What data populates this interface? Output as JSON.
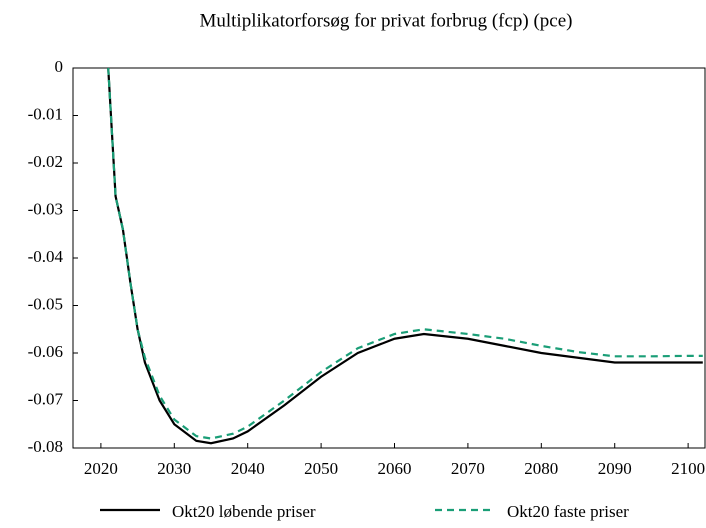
{
  "chart_data": {
    "type": "line",
    "title": "Multiplikatorforsøg for privat forbrug (fcp) (pce)",
    "x": [
      2021,
      2022,
      2023,
      2024,
      2025,
      2026,
      2028,
      2030,
      2033,
      2035,
      2038,
      2040,
      2045,
      2050,
      2055,
      2060,
      2064,
      2070,
      2075,
      2080,
      2085,
      2090,
      2095,
      2100,
      2102
    ],
    "series": [
      {
        "name": "Okt20 løbende priser",
        "color": "#000000",
        "dash": "solid",
        "values": [
          0,
          -0.027,
          -0.034,
          -0.045,
          -0.055,
          -0.062,
          -0.07,
          -0.075,
          -0.0785,
          -0.079,
          -0.078,
          -0.0765,
          -0.071,
          -0.065,
          -0.06,
          -0.057,
          -0.056,
          -0.057,
          -0.0585,
          -0.06,
          -0.061,
          -0.062,
          -0.062,
          -0.062,
          -0.062
        ]
      },
      {
        "name": "Okt20 faste priser",
        "color": "#1a9e77",
        "dash": "dashed",
        "values": [
          0,
          -0.027,
          -0.034,
          -0.045,
          -0.055,
          -0.061,
          -0.069,
          -0.074,
          -0.0775,
          -0.078,
          -0.077,
          -0.0755,
          -0.07,
          -0.064,
          -0.059,
          -0.056,
          -0.055,
          -0.056,
          -0.057,
          -0.0585,
          -0.0598,
          -0.0607,
          -0.0607,
          -0.0606,
          -0.0606
        ]
      }
    ],
    "xlim": [
      2016.2,
      2102.3
    ],
    "xticks": [
      2020,
      2030,
      2040,
      2050,
      2060,
      2070,
      2080,
      2090,
      2100
    ],
    "ylim": [
      -0.08,
      0
    ],
    "yticks": [
      0,
      -0.01,
      -0.02,
      -0.03,
      -0.04,
      -0.05,
      -0.06,
      -0.07,
      -0.08
    ],
    "legend": "bottom"
  }
}
